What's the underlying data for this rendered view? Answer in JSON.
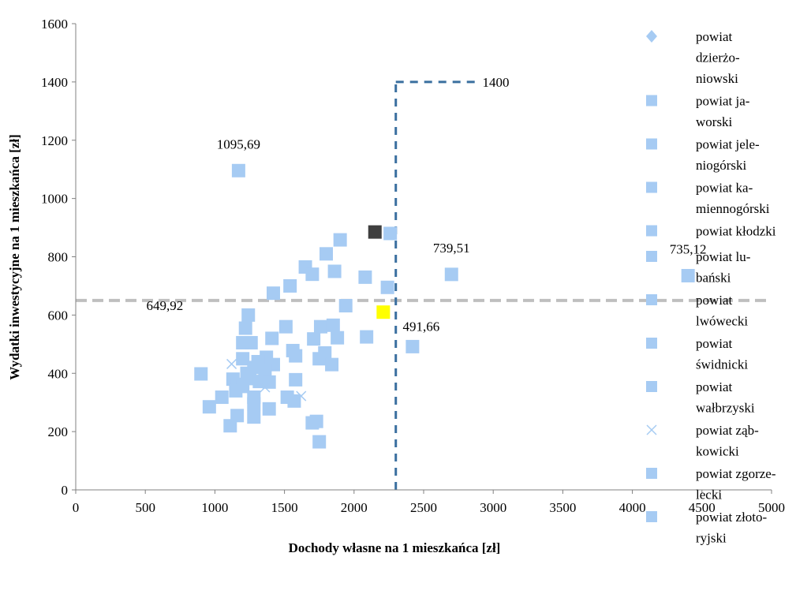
{
  "chart_data": {
    "type": "scatter",
    "title": "",
    "xlabel": "Dochody własne na 1 mieszkańca [zł]",
    "ylabel": "Wydatki inwestycyjne na 1 mieszkańca [zł]",
    "xlim": [
      0,
      5000
    ],
    "ylim": [
      0,
      1600
    ],
    "x_ticks": [
      "0",
      "500",
      "1000",
      "1500",
      "2000",
      "2500",
      "3000",
      "3500",
      "4000",
      "4500",
      "5000"
    ],
    "y_ticks": [
      "0",
      "200",
      "400",
      "600",
      "800",
      "1000",
      "1200",
      "1400",
      "1600"
    ],
    "grid": false,
    "legend_position": "right",
    "colors": {
      "marker": "#a6cbf3",
      "highlight_yellow": "#ffff00",
      "highlight_dark": "#3f3f3f",
      "h_line": "#bfbfbf",
      "v_line": "#3a6f9f"
    },
    "legend": [
      {
        "label": "powiat dzierżo-niowski",
        "lines": [
          "powiat",
          "dzierżo-",
          "niowski"
        ],
        "marker": "diamond"
      },
      {
        "label": "powiat ja-worski",
        "lines": [
          "powiat ja-",
          "worski"
        ],
        "marker": "square"
      },
      {
        "label": "powiat jele-niogórski",
        "lines": [
          "powiat jele-",
          "niogórski"
        ],
        "marker": "square"
      },
      {
        "label": "powiat ka-miennogórski",
        "lines": [
          "powiat ka-",
          "miennogórski"
        ],
        "marker": "square"
      },
      {
        "label": "powiat kłodzki",
        "lines": [
          "powiat kłodzki"
        ],
        "marker": "square"
      },
      {
        "label": "powiat lu-bański",
        "lines": [
          "powiat lu-",
          "bański"
        ],
        "marker": "square"
      },
      {
        "label": "powiat lwówecki",
        "lines": [
          "powiat",
          "lwówecki"
        ],
        "marker": "square"
      },
      {
        "label": "powiat świdnicki",
        "lines": [
          "powiat",
          "świdnicki"
        ],
        "marker": "square"
      },
      {
        "label": "powiat wałbrzyski",
        "lines": [
          "powiat",
          "wałbrzyski"
        ],
        "marker": "square"
      },
      {
        "label": "powiat ząb-kowicki",
        "lines": [
          "powiat ząb-",
          "kowicki"
        ],
        "marker": "x"
      },
      {
        "label": "powiat zgorze-lecki",
        "lines": [
          "powiat zgorze-",
          "lecki"
        ],
        "marker": "square"
      },
      {
        "label": "powiat złoto-ryjski",
        "lines": [
          "powiat złoto-",
          "ryjski"
        ],
        "marker": "square"
      }
    ],
    "reference_lines": [
      {
        "orientation": "horizontal",
        "y": 649.92,
        "x_range": [
          0,
          5000
        ],
        "label": "649,92",
        "label_x": 640
      },
      {
        "orientation": "vertical",
        "x": 2300,
        "y_range": [
          0,
          1400
        ],
        "label": ""
      },
      {
        "orientation": "horizontal",
        "y": 1400,
        "x_range": [
          2300,
          2900
        ],
        "label": "1400"
      }
    ],
    "annotations": [
      {
        "text": "1095,69",
        "x": 1170,
        "y": 1095.69,
        "dx": 0,
        "dy": -28
      },
      {
        "text": "739,51",
        "x": 2700,
        "y": 739.51,
        "dx": 0,
        "dy": -28
      },
      {
        "text": "735,12",
        "x": 4400,
        "y": 735.12,
        "dx": 0,
        "dy": -28
      },
      {
        "text": "491,66",
        "x": 2210,
        "y": 610,
        "dx": 48,
        "dy": 24
      }
    ],
    "points": [
      {
        "x": 1170,
        "y": 1095.69,
        "marker": "square"
      },
      {
        "x": 2700,
        "y": 739.51,
        "marker": "square"
      },
      {
        "x": 4400,
        "y": 735.12,
        "marker": "square"
      },
      {
        "x": 2420,
        "y": 491.66,
        "marker": "square"
      },
      {
        "x": 1900,
        "y": 858,
        "marker": "square"
      },
      {
        "x": 1800,
        "y": 810,
        "marker": "square"
      },
      {
        "x": 2260,
        "y": 880,
        "marker": "square"
      },
      {
        "x": 1650,
        "y": 765,
        "marker": "square"
      },
      {
        "x": 1700,
        "y": 740,
        "marker": "square"
      },
      {
        "x": 1860,
        "y": 750,
        "marker": "square"
      },
      {
        "x": 2080,
        "y": 730,
        "marker": "square"
      },
      {
        "x": 2240,
        "y": 695,
        "marker": "square"
      },
      {
        "x": 1540,
        "y": 700,
        "marker": "square"
      },
      {
        "x": 1420,
        "y": 675,
        "marker": "square"
      },
      {
        "x": 1940,
        "y": 632,
        "marker": "square"
      },
      {
        "x": 1240,
        "y": 600,
        "marker": "square"
      },
      {
        "x": 1220,
        "y": 555,
        "marker": "square"
      },
      {
        "x": 1510,
        "y": 560,
        "marker": "square"
      },
      {
        "x": 1760,
        "y": 560,
        "marker": "square"
      },
      {
        "x": 1850,
        "y": 565,
        "marker": "square"
      },
      {
        "x": 1880,
        "y": 522,
        "marker": "square"
      },
      {
        "x": 1710,
        "y": 518,
        "marker": "square"
      },
      {
        "x": 1410,
        "y": 520,
        "marker": "square"
      },
      {
        "x": 2090,
        "y": 525,
        "marker": "square"
      },
      {
        "x": 1200,
        "y": 505,
        "marker": "square"
      },
      {
        "x": 1260,
        "y": 505,
        "marker": "square"
      },
      {
        "x": 1560,
        "y": 478,
        "marker": "square"
      },
      {
        "x": 1790,
        "y": 470,
        "marker": "square"
      },
      {
        "x": 1750,
        "y": 450,
        "marker": "square"
      },
      {
        "x": 1840,
        "y": 430,
        "marker": "square"
      },
      {
        "x": 1580,
        "y": 460,
        "marker": "square"
      },
      {
        "x": 1370,
        "y": 455,
        "marker": "square"
      },
      {
        "x": 1200,
        "y": 450,
        "marker": "square"
      },
      {
        "x": 1310,
        "y": 440,
        "marker": "square"
      },
      {
        "x": 1420,
        "y": 430,
        "marker": "square"
      },
      {
        "x": 1280,
        "y": 420,
        "marker": "square"
      },
      {
        "x": 1360,
        "y": 410,
        "marker": "square"
      },
      {
        "x": 1230,
        "y": 400,
        "marker": "square"
      },
      {
        "x": 900,
        "y": 398,
        "marker": "square"
      },
      {
        "x": 1130,
        "y": 380,
        "marker": "square"
      },
      {
        "x": 1250,
        "y": 382,
        "marker": "square"
      },
      {
        "x": 1580,
        "y": 378,
        "marker": "square"
      },
      {
        "x": 1320,
        "y": 372,
        "marker": "square"
      },
      {
        "x": 1390,
        "y": 370,
        "marker": "square"
      },
      {
        "x": 1160,
        "y": 362,
        "marker": "square"
      },
      {
        "x": 1200,
        "y": 355,
        "marker": "square"
      },
      {
        "x": 1150,
        "y": 340,
        "marker": "square"
      },
      {
        "x": 1520,
        "y": 318,
        "marker": "square"
      },
      {
        "x": 1050,
        "y": 318,
        "marker": "square"
      },
      {
        "x": 1280,
        "y": 318,
        "marker": "square"
      },
      {
        "x": 1570,
        "y": 305,
        "marker": "square"
      },
      {
        "x": 1280,
        "y": 295,
        "marker": "square"
      },
      {
        "x": 960,
        "y": 285,
        "marker": "square"
      },
      {
        "x": 1390,
        "y": 278,
        "marker": "square"
      },
      {
        "x": 1160,
        "y": 255,
        "marker": "square"
      },
      {
        "x": 1280,
        "y": 250,
        "marker": "square"
      },
      {
        "x": 1700,
        "y": 230,
        "marker": "square"
      },
      {
        "x": 1730,
        "y": 235,
        "marker": "square"
      },
      {
        "x": 1110,
        "y": 220,
        "marker": "square"
      },
      {
        "x": 1750,
        "y": 165,
        "marker": "square"
      },
      {
        "x": 1120,
        "y": 432,
        "marker": "x"
      },
      {
        "x": 1360,
        "y": 352,
        "marker": "x"
      },
      {
        "x": 1620,
        "y": 322,
        "marker": "x"
      },
      {
        "x": 2210,
        "y": 610,
        "marker": "square",
        "color": "#ffff00"
      },
      {
        "x": 2150,
        "y": 885,
        "marker": "square",
        "color": "#3f3f3f"
      }
    ]
  }
}
